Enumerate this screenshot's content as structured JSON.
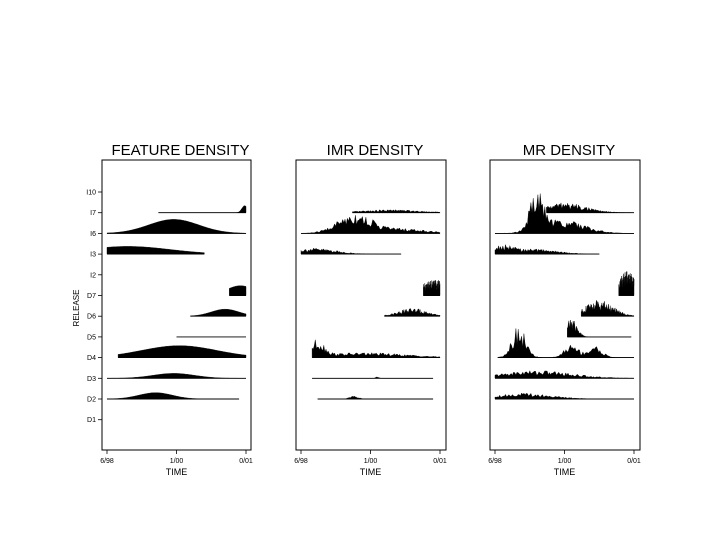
{
  "figure": {
    "ylabel": "RELEASE"
  },
  "chart_data": [
    {
      "type": "area",
      "title": "FEATURE DENSITY",
      "xlabel": "TIME",
      "x_ticks": [
        "6/98",
        "1/00",
        "0/01"
      ],
      "y_ticks": [
        "D1",
        "D2",
        "D3",
        "D4",
        "D5",
        "D6",
        "D7",
        "I2",
        "I3",
        "I6",
        "I7",
        "I10"
      ],
      "series": [
        {
          "release": "D2",
          "span": [
            0.0,
            0.95
          ],
          "peaks": [
            [
              0.35,
              0.12,
              0.45
            ]
          ]
        },
        {
          "release": "D3",
          "span": [
            0.0,
            1.0
          ],
          "peaks": [
            [
              0.48,
              0.15,
              0.35
            ]
          ]
        },
        {
          "release": "D4",
          "span": [
            0.08,
            1.0
          ],
          "peaks": [
            [
              0.52,
              0.27,
              0.85
            ]
          ]
        },
        {
          "release": "D5",
          "span": [
            0.5,
            1.0
          ],
          "peaks": []
        },
        {
          "release": "D6",
          "span": [
            0.6,
            1.0
          ],
          "peaks": [
            [
              0.85,
              0.1,
              0.5
            ]
          ]
        },
        {
          "release": "D7",
          "span": [
            0.88,
            1.0
          ],
          "peaks": [
            [
              0.96,
              0.1,
              0.7
            ]
          ]
        },
        {
          "release": "I3",
          "span": [
            0.0,
            0.7
          ],
          "peaks": [
            [
              0.15,
              0.3,
              0.55
            ]
          ]
        },
        {
          "release": "I6",
          "span": [
            0.0,
            1.0
          ],
          "peaks": [
            [
              0.48,
              0.18,
              1.0
            ]
          ]
        },
        {
          "release": "I7",
          "span": [
            0.37,
            1.0
          ],
          "peaks": [
            [
              0.99,
              0.02,
              0.5
            ]
          ]
        }
      ]
    },
    {
      "type": "area",
      "title": "IMR DENSITY",
      "xlabel": "TIME",
      "x_ticks": [
        "6/98",
        "1/00",
        "0/01"
      ],
      "y_ticks": [],
      "series": [
        {
          "release": "D2",
          "span": [
            0.12,
            0.95
          ],
          "peaks": [
            [
              0.38,
              0.03,
              0.15
            ]
          ]
        },
        {
          "release": "D3",
          "span": [
            0.08,
            0.95
          ],
          "peaks": [
            [
              0.55,
              0.01,
              0.1
            ]
          ]
        },
        {
          "release": "D4",
          "span": [
            0.08,
            1.0
          ],
          "peaks": [
            [
              0.12,
              0.05,
              0.8
            ],
            [
              0.45,
              0.3,
              0.25
            ]
          ]
        },
        {
          "release": "D6",
          "span": [
            0.6,
            1.0
          ],
          "peaks": [
            [
              0.8,
              0.1,
              0.4
            ]
          ]
        },
        {
          "release": "D7",
          "span": [
            0.88,
            1.0
          ],
          "peaks": [
            [
              0.96,
              0.1,
              0.8
            ]
          ]
        },
        {
          "release": "I3",
          "span": [
            0.0,
            0.72
          ],
          "peaks": [
            [
              0.1,
              0.15,
              0.3
            ]
          ]
        },
        {
          "release": "I6",
          "span": [
            0.0,
            1.0
          ],
          "peaks": [
            [
              0.38,
              0.12,
              1.0
            ],
            [
              0.7,
              0.2,
              0.25
            ]
          ]
        },
        {
          "release": "I7",
          "span": [
            0.37,
            1.0
          ],
          "peaks": [
            [
              0.65,
              0.2,
              0.15
            ]
          ]
        }
      ]
    },
    {
      "type": "area",
      "title": "MR DENSITY",
      "xlabel": "TIME",
      "x_ticks": [
        "6/98",
        "1/00",
        "0/01"
      ],
      "y_ticks": [],
      "series": [
        {
          "release": "D2",
          "span": [
            0.0,
            1.0
          ],
          "peaks": [
            [
              0.2,
              0.2,
              0.3
            ]
          ]
        },
        {
          "release": "D3",
          "span": [
            0.0,
            1.0
          ],
          "peaks": [
            [
              0.3,
              0.25,
              0.4
            ]
          ]
        },
        {
          "release": "D4",
          "span": [
            0.02,
            1.0
          ],
          "peaks": [
            [
              0.17,
              0.05,
              1.6
            ],
            [
              0.55,
              0.05,
              0.7
            ],
            [
              0.72,
              0.05,
              0.6
            ]
          ]
        },
        {
          "release": "D5",
          "span": [
            0.52,
            0.98
          ],
          "peaks": [
            [
              0.55,
              0.04,
              0.9
            ]
          ]
        },
        {
          "release": "D6",
          "span": [
            0.62,
            1.0
          ],
          "peaks": [
            [
              0.75,
              0.1,
              0.8
            ]
          ]
        },
        {
          "release": "D7",
          "span": [
            0.89,
            1.0
          ],
          "peaks": [
            [
              0.95,
              0.06,
              1.2
            ]
          ]
        },
        {
          "release": "I3",
          "span": [
            0.0,
            0.75
          ],
          "peaks": [
            [
              0.05,
              0.08,
              0.4
            ],
            [
              0.3,
              0.15,
              0.25
            ]
          ]
        },
        {
          "release": "I6",
          "span": [
            0.0,
            1.0
          ],
          "peaks": [
            [
              0.3,
              0.05,
              1.9
            ],
            [
              0.5,
              0.15,
              0.7
            ]
          ]
        },
        {
          "release": "I7",
          "span": [
            0.37,
            1.0
          ],
          "peaks": [
            [
              0.5,
              0.15,
              0.5
            ]
          ]
        }
      ]
    }
  ]
}
